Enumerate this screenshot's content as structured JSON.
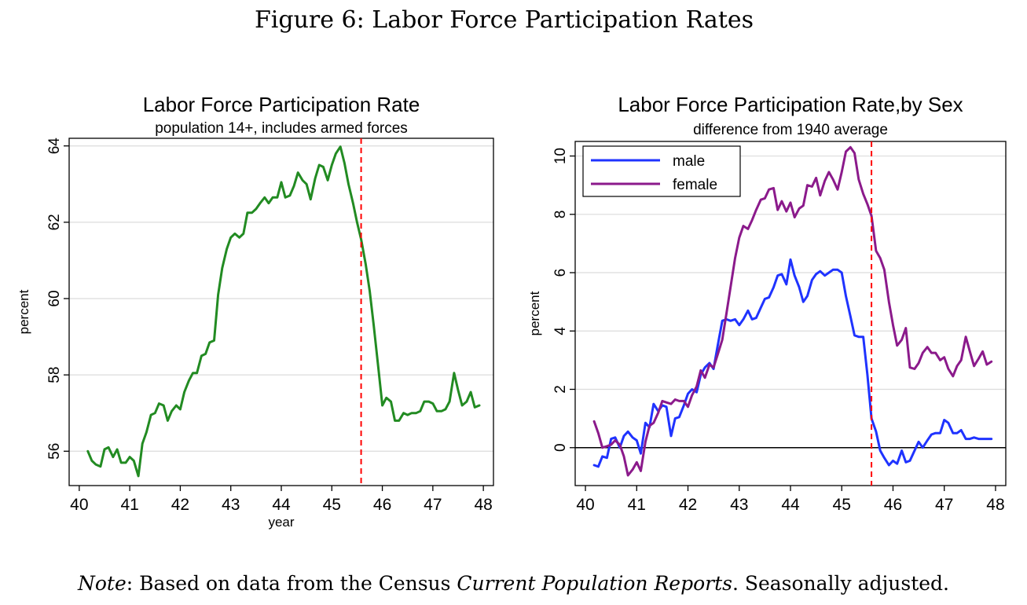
{
  "figure": {
    "title": "Figure 6: Labor Force Participation Rates",
    "note_label": "Note",
    "note_text_1": ": Based on data from the Census ",
    "note_italic": "Current Population Reports",
    "note_text_2": ". Seasonally adjusted."
  },
  "chart_data": [
    {
      "type": "line",
      "title": "Labor Force Participation Rate",
      "subtitle": "population 14+, includes armed forces",
      "xlabel": "year",
      "ylabel": "percent",
      "xlim": [
        39.8,
        48.2
      ],
      "ylim": [
        55.1,
        64.2
      ],
      "xticks": [
        40,
        41,
        42,
        43,
        44,
        45,
        46,
        47,
        48
      ],
      "yticks": [
        56,
        58,
        60,
        62,
        64
      ],
      "grid": true,
      "vline": {
        "x": 45.58,
        "color": "#ff0000",
        "style": "dashed"
      },
      "series": [
        {
          "color": "#228B22",
          "x": [
            40.17,
            40.25,
            40.33,
            40.42,
            40.5,
            40.58,
            40.67,
            40.75,
            40.83,
            40.92,
            41.0,
            41.08,
            41.17,
            41.25,
            41.33,
            41.42,
            41.5,
            41.58,
            41.67,
            41.75,
            41.83,
            41.92,
            42.0,
            42.08,
            42.17,
            42.25,
            42.33,
            42.42,
            42.5,
            42.58,
            42.67,
            42.75,
            42.83,
            42.92,
            43.0,
            43.08,
            43.17,
            43.25,
            43.33,
            43.42,
            43.5,
            43.58,
            43.67,
            43.75,
            43.83,
            43.92,
            44.0,
            44.08,
            44.17,
            44.25,
            44.33,
            44.42,
            44.5,
            44.58,
            44.67,
            44.75,
            44.83,
            44.92,
            45.0,
            45.08,
            45.17,
            45.25,
            45.33,
            45.42,
            45.5,
            45.58,
            45.67,
            45.75,
            45.83,
            45.92,
            46.0,
            46.08,
            46.17,
            46.25,
            46.33,
            46.42,
            46.5,
            46.58,
            46.67,
            46.75,
            46.83,
            46.92,
            47.0,
            47.08,
            47.17,
            47.25,
            47.33,
            47.42,
            47.5,
            47.58,
            47.67,
            47.75,
            47.83,
            47.92
          ],
          "y": [
            56.0,
            55.75,
            55.65,
            55.6,
            56.05,
            56.1,
            55.85,
            56.05,
            55.7,
            55.7,
            55.85,
            55.75,
            55.35,
            56.2,
            56.5,
            56.95,
            57.0,
            57.25,
            57.2,
            56.8,
            57.05,
            57.2,
            57.1,
            57.55,
            57.85,
            58.05,
            58.05,
            58.5,
            58.55,
            58.85,
            58.9,
            60.1,
            60.8,
            61.3,
            61.6,
            61.7,
            61.6,
            61.7,
            62.25,
            62.25,
            62.35,
            62.5,
            62.65,
            62.5,
            62.65,
            62.65,
            63.05,
            62.65,
            62.7,
            62.95,
            63.3,
            63.1,
            63.0,
            62.6,
            63.15,
            63.5,
            63.45,
            63.1,
            63.5,
            63.8,
            63.98,
            63.55,
            63.0,
            62.5,
            62.0,
            61.55,
            60.9,
            60.2,
            59.3,
            58.2,
            57.2,
            57.4,
            57.3,
            56.8,
            56.8,
            57.0,
            56.95,
            57.0,
            57.0,
            57.05,
            57.3,
            57.3,
            57.25,
            57.05,
            57.05,
            57.1,
            57.3,
            58.05,
            57.6,
            57.2,
            57.3,
            57.55,
            57.15,
            57.2
          ]
        }
      ]
    },
    {
      "type": "line",
      "title": "Labor Force Participation Rate,by Sex",
      "subtitle": "difference from 1940 average",
      "xlabel": "",
      "ylabel": "percent",
      "xlim": [
        39.8,
        48.2
      ],
      "ylim": [
        -1.3,
        10.5
      ],
      "xticks": [
        40,
        41,
        42,
        43,
        44,
        45,
        46,
        47,
        48
      ],
      "yticks": [
        0,
        2,
        4,
        6,
        8,
        10
      ],
      "grid": true,
      "zero_line": true,
      "legend": "top-left",
      "vline": {
        "x": 45.58,
        "color": "#ff0000",
        "style": "dashed"
      },
      "series": [
        {
          "name": "male",
          "color": "#1f33ff",
          "x": [
            40.17,
            40.25,
            40.33,
            40.42,
            40.5,
            40.58,
            40.67,
            40.75,
            40.83,
            40.92,
            41.0,
            41.08,
            41.17,
            41.25,
            41.33,
            41.42,
            41.5,
            41.58,
            41.67,
            41.75,
            41.83,
            41.92,
            42.0,
            42.08,
            42.17,
            42.25,
            42.33,
            42.42,
            42.5,
            42.58,
            42.67,
            42.75,
            42.83,
            42.92,
            43.0,
            43.08,
            43.17,
            43.25,
            43.33,
            43.42,
            43.5,
            43.58,
            43.67,
            43.75,
            43.83,
            43.92,
            44.0,
            44.08,
            44.17,
            44.25,
            44.33,
            44.42,
            44.5,
            44.58,
            44.67,
            44.75,
            44.83,
            44.92,
            45.0,
            45.08,
            45.17,
            45.25,
            45.33,
            45.42,
            45.5,
            45.58,
            45.67,
            45.75,
            45.83,
            45.92,
            46.0,
            46.08,
            46.17,
            46.25,
            46.33,
            46.42,
            46.5,
            46.58,
            46.67,
            46.75,
            46.83,
            46.92,
            47.0,
            47.08,
            47.17,
            47.25,
            47.33,
            47.42,
            47.5,
            47.58,
            47.67,
            47.75,
            47.83,
            47.92
          ],
          "y": [
            -0.6,
            -0.65,
            -0.3,
            -0.35,
            0.3,
            0.35,
            0.0,
            0.4,
            0.55,
            0.35,
            0.25,
            -0.2,
            0.85,
            0.7,
            1.5,
            1.25,
            1.45,
            1.4,
            0.4,
            1.0,
            1.05,
            1.45,
            1.85,
            2.0,
            1.9,
            2.5,
            2.75,
            2.9,
            2.7,
            3.5,
            4.35,
            4.4,
            4.35,
            4.4,
            4.2,
            4.4,
            4.7,
            4.4,
            4.45,
            4.8,
            5.1,
            5.15,
            5.5,
            5.9,
            5.95,
            5.6,
            6.45,
            5.9,
            5.5,
            5.0,
            5.2,
            5.75,
            5.95,
            6.05,
            5.9,
            6.0,
            6.1,
            6.1,
            6.0,
            5.2,
            4.5,
            3.85,
            3.8,
            3.8,
            2.5,
            1.0,
            0.55,
            -0.1,
            -0.35,
            -0.6,
            -0.45,
            -0.55,
            -0.1,
            -0.5,
            -0.45,
            -0.1,
            0.2,
            0.0,
            0.25,
            0.45,
            0.5,
            0.5,
            0.95,
            0.85,
            0.5,
            0.5,
            0.6,
            0.3,
            0.3,
            0.35,
            0.3,
            0.3,
            0.3,
            0.3
          ],
          "y_note": "male series"
        },
        {
          "name": "female",
          "color": "#8b1a8b",
          "x": [
            40.17,
            40.25,
            40.33,
            40.42,
            40.5,
            40.58,
            40.67,
            40.75,
            40.83,
            40.92,
            41.0,
            41.08,
            41.17,
            41.25,
            41.33,
            41.42,
            41.5,
            41.58,
            41.67,
            41.75,
            41.83,
            41.92,
            42.0,
            42.08,
            42.17,
            42.25,
            42.33,
            42.42,
            42.5,
            42.58,
            42.67,
            42.75,
            42.83,
            42.92,
            43.0,
            43.08,
            43.17,
            43.25,
            43.33,
            43.42,
            43.5,
            43.58,
            43.67,
            43.75,
            43.83,
            43.92,
            44.0,
            44.08,
            44.17,
            44.25,
            44.33,
            44.42,
            44.5,
            44.58,
            44.67,
            44.75,
            44.83,
            44.92,
            45.0,
            45.08,
            45.17,
            45.25,
            45.33,
            45.42,
            45.5,
            45.58,
            45.67,
            45.75,
            45.83,
            45.92,
            46.0,
            46.08,
            46.17,
            46.25,
            46.33,
            46.42,
            46.5,
            46.58,
            46.67,
            46.75,
            46.83,
            46.92,
            47.0,
            47.08,
            47.17,
            47.25,
            47.33,
            47.42,
            47.5,
            47.58,
            47.67,
            47.75,
            47.83,
            47.92
          ],
          "y": [
            0.9,
            0.5,
            0.0,
            0.05,
            0.1,
            0.25,
            0.1,
            -0.3,
            -0.95,
            -0.75,
            -0.5,
            -0.8,
            0.2,
            0.75,
            0.85,
            1.2,
            1.6,
            1.55,
            1.5,
            1.65,
            1.6,
            1.6,
            1.4,
            1.8,
            2.1,
            2.65,
            2.4,
            2.85,
            2.75,
            3.2,
            3.7,
            4.6,
            5.5,
            6.5,
            7.2,
            7.6,
            7.5,
            7.8,
            8.15,
            8.5,
            8.55,
            8.85,
            8.9,
            8.15,
            8.45,
            8.1,
            8.4,
            7.9,
            8.2,
            8.3,
            9.0,
            8.95,
            9.25,
            8.65,
            9.15,
            9.45,
            9.2,
            8.85,
            9.45,
            10.15,
            10.3,
            10.1,
            9.2,
            8.7,
            8.35,
            7.95,
            6.75,
            6.5,
            6.1,
            5.0,
            4.2,
            3.5,
            3.7,
            4.1,
            2.75,
            2.7,
            2.9,
            3.25,
            3.45,
            3.25,
            3.25,
            3.0,
            3.1,
            2.7,
            2.45,
            2.8,
            3.0,
            3.8,
            3.3,
            2.8,
            3.05,
            3.3,
            2.85,
            2.95
          ]
        }
      ]
    }
  ]
}
